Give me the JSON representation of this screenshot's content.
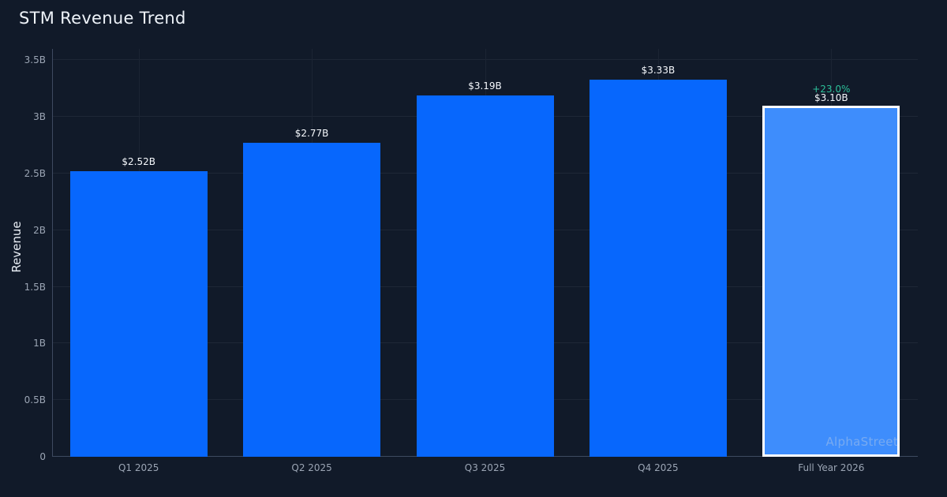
{
  "page": {
    "title": "STM Revenue Trend"
  },
  "watermark": "AlphaStreet",
  "theme": {
    "background": "#111a29",
    "grid_color": "#1e2736",
    "axis_color": "#3e4a60",
    "tick_text_color": "#9ba5b4",
    "label_text_color": "#f5f8fc",
    "title_color": "#eef3f9",
    "bar_color": "#0767fd",
    "highlight_bar_color": "#3e8dfc",
    "highlight_border_color": "#ffffff",
    "annotation_positive_color": "#2cc09a"
  },
  "chart_data": {
    "type": "bar",
    "title": "STM Revenue Trend",
    "xlabel": "",
    "ylabel": "Revenue",
    "categories": [
      "Q1 2025",
      "Q2 2025",
      "Q3 2025",
      "Q4 2025",
      "Full Year 2026"
    ],
    "values": [
      2.52,
      2.77,
      3.19,
      3.33,
      3.1
    ],
    "value_unit": "billions USD",
    "bar_labels": [
      "$2.52B",
      "$2.77B",
      "$3.19B",
      "$3.33B",
      "$3.10B"
    ],
    "highlight_index": 4,
    "annotations": [
      {
        "index": 4,
        "text": "+23.0%"
      }
    ],
    "ylim": [
      0,
      3.6
    ],
    "y_ticks": {
      "values": [
        0,
        0.5,
        1,
        1.5,
        2,
        2.5,
        3,
        3.5
      ],
      "labels": [
        "0",
        "0.5B",
        "1B",
        "1.5B",
        "2B",
        "2.5B",
        "3B",
        "3.5B"
      ]
    },
    "grid": true,
    "legend_position": "none"
  }
}
